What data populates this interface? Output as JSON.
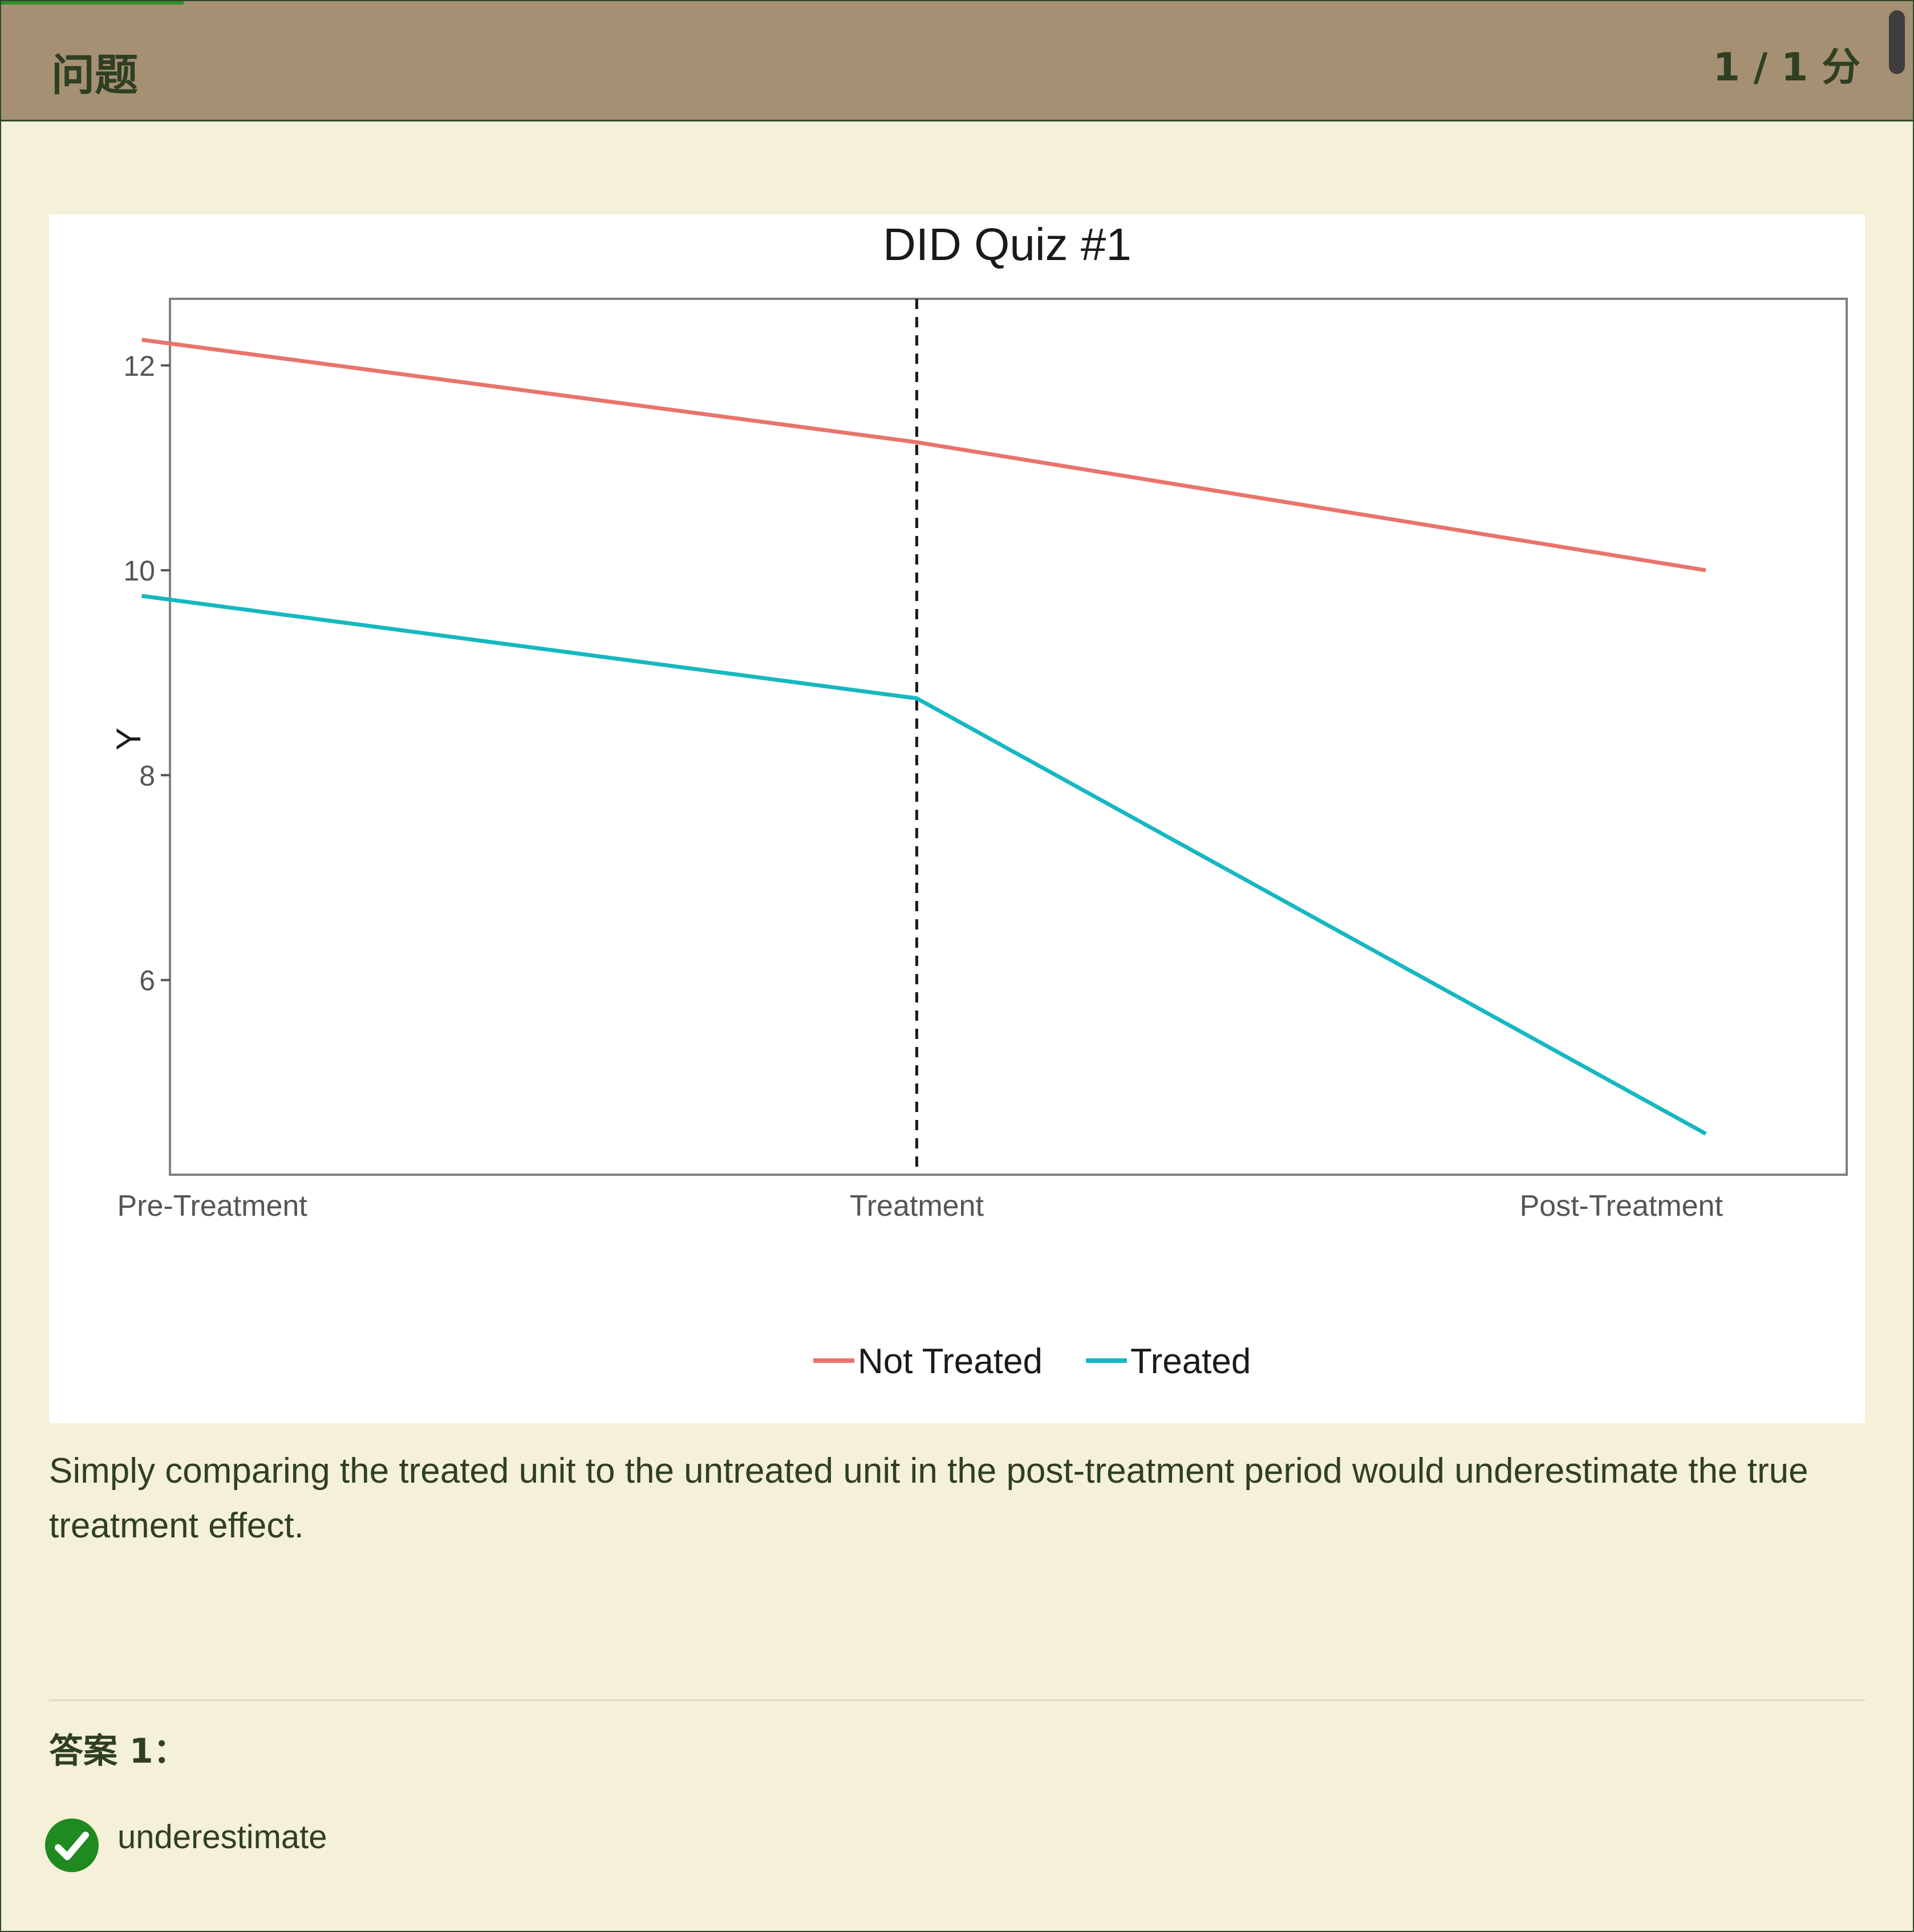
{
  "header": {
    "title": "问题",
    "score": "1 / 1 分"
  },
  "chart_data": {
    "type": "line",
    "title": "DID Quiz #1",
    "ylabel": "Y",
    "xlabel": "",
    "categories": [
      "Pre-Treatment",
      "Treatment",
      "Post-Treatment"
    ],
    "x": [
      1,
      2,
      3
    ],
    "xlim": [
      0.94,
      3.32
    ],
    "ylim": [
      4.1,
      12.65
    ],
    "yticks": [
      6,
      8,
      10,
      12
    ],
    "vline": 2,
    "series": [
      {
        "name": "Not Treated",
        "color": "#e8746c",
        "points": [
          [
            0.9,
            12.25
          ],
          [
            2,
            11.25
          ],
          [
            3.12,
            10.0
          ]
        ]
      },
      {
        "name": "Treated",
        "color": "#16b8c0",
        "points": [
          [
            0.9,
            9.75
          ],
          [
            2,
            8.75
          ],
          [
            3.12,
            4.5
          ]
        ]
      }
    ],
    "legend_position": "bottom",
    "grid": false
  },
  "question": {
    "text": "Simply comparing the treated unit to the untreated unit in the post-treatment period would underestimate the true treatment effect."
  },
  "answer": {
    "label": "答案 1：",
    "value": "underestimate",
    "status_color": "#1f8a1f"
  },
  "icons": {
    "answer_status": "check-circle-icon"
  }
}
